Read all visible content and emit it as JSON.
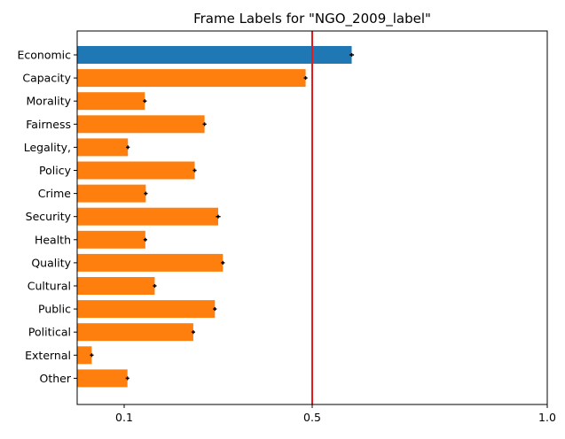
{
  "chart_data": {
    "type": "bar",
    "orientation": "horizontal",
    "title": "Frame Labels for \"NGO_2009_label\"",
    "xlabel": "",
    "ylabel": "",
    "xlim": [
      0.0,
      1.0
    ],
    "xticks": [
      {
        "value": 0.1,
        "label": "0.1"
      },
      {
        "value": 0.5,
        "label": "0.5"
      },
      {
        "value": 1.0,
        "label": "1.0"
      }
    ],
    "reference_line": {
      "value": 0.5,
      "color": "#e41a1c"
    },
    "highlight_color": "#1f77b4",
    "default_color": "#ff7f0e",
    "categories": [
      "Economic",
      "Capacity",
      "Morality",
      "Fairness",
      "Legality,",
      "Policy",
      "Crime",
      "Security",
      "Health",
      "Quality",
      "Cultural",
      "Public",
      "Political",
      "External",
      "Other"
    ],
    "values": [
      0.584,
      0.486,
      0.144,
      0.271,
      0.108,
      0.25,
      0.146,
      0.3,
      0.145,
      0.31,
      0.165,
      0.293,
      0.247,
      0.031,
      0.107
    ],
    "errors": [
      0.003,
      0.002,
      0.002,
      0.002,
      0.002,
      0.002,
      0.002,
      0.003,
      0.002,
      0.002,
      0.002,
      0.002,
      0.002,
      0.002,
      0.002
    ],
    "highlighted": [
      true,
      false,
      false,
      false,
      false,
      false,
      false,
      false,
      false,
      false,
      false,
      false,
      false,
      false,
      false
    ],
    "grid": false,
    "legend": "none"
  }
}
